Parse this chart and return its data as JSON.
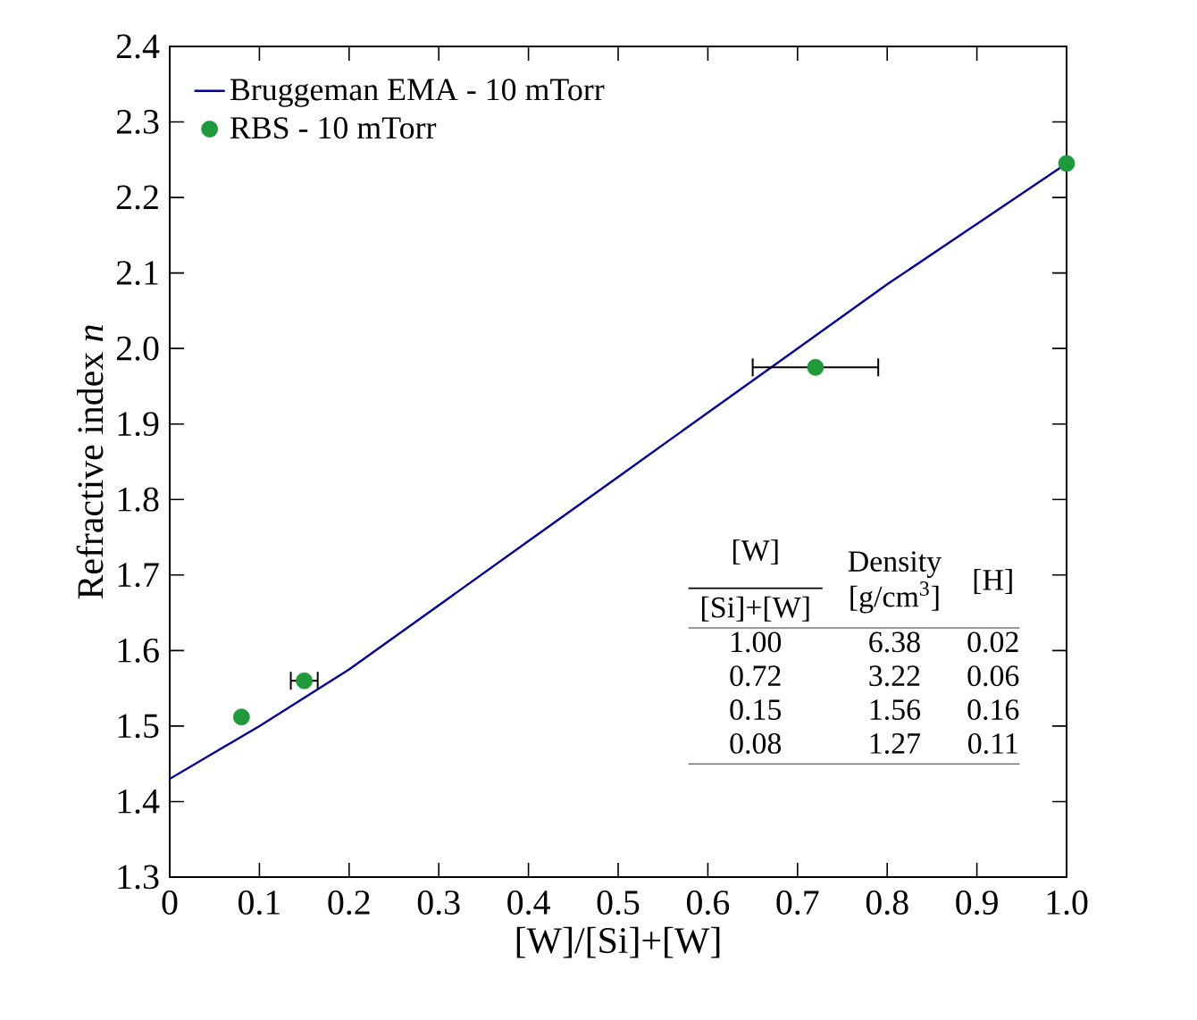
{
  "chart_data": {
    "type": "line",
    "xlabel": "[W]/[Si]+[W]",
    "ylabel": "Refractive index *n*",
    "xlim": [
      0,
      1
    ],
    "ylim": [
      1.3,
      2.4
    ],
    "xticks": [
      0,
      {
        "value": 0.1,
        "label": "0.1"
      },
      {
        "value": 0.2,
        "label": "0.2"
      },
      {
        "value": 0.3,
        "label": "0.3"
      },
      {
        "value": 0.4,
        "label": "0.4"
      },
      {
        "value": 0.5,
        "label": "0.5"
      },
      {
        "value": 0.6,
        "label": "0.6"
      },
      {
        "value": 0.7,
        "label": "0.7"
      },
      {
        "value": 0.8,
        "label": "0.8"
      },
      {
        "value": 0.9,
        "label": "0.9"
      },
      {
        "value": 1,
        "label": "1.0"
      }
    ],
    "yticks": [
      1.3,
      1.4,
      1.5,
      1.6,
      1.7,
      1.8,
      1.9,
      {
        "value": 2,
        "label": "2.0"
      },
      2.1,
      2.2,
      2.3,
      2.4
    ],
    "legend": "top left",
    "grid": false,
    "series": [
      {
        "name": "Bruggeman EMA - 10 mTorr",
        "color": "#0000a0",
        "marker": "none",
        "line_style": "solid",
        "x": [
          0,
          0.1,
          0.2,
          0.3,
          0.4,
          0.5,
          0.6,
          0.7,
          0.8,
          0.9,
          1.0
        ],
        "values": [
          1.43,
          1.5,
          1.575,
          1.66,
          1.745,
          1.83,
          1.915,
          2.0,
          2.085,
          2.165,
          2.245
        ]
      },
      {
        "name": "RBS - 10 mTorr",
        "type": "scatter",
        "color": "#1f9a3a",
        "marker": "circle",
        "x": [
          1.0,
          0.72,
          0.15,
          0.08
        ],
        "values": [
          2.245,
          1.975,
          1.56,
          1.512
        ],
        "xerrors": [
          null,
          0.07,
          0.015,
          null
        ]
      }
    ],
    "annotations": [
      "[W]",
      "[Si]+[W]",
      "Density",
      "[g/cm$^{3}$]",
      "[H]",
      "1.00",
      "6.38",
      "0.02",
      "0.72",
      "3.22",
      "0.06",
      "0.15",
      "1.56",
      "0.16",
      "0.08",
      "1.27",
      "0.11"
    ]
  }
}
